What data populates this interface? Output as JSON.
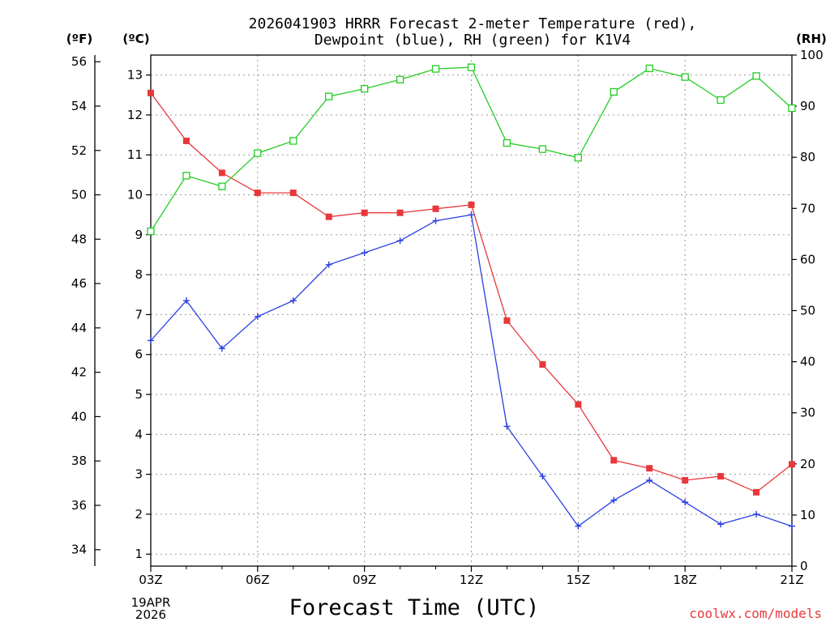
{
  "title_line1": "2026041903 HRRR Forecast 2-meter Temperature (red),",
  "title_line2": "Dewpoint (blue), RH (green) for K1V4",
  "units": {
    "fahrenheit": "(ºF)",
    "celsius": "(ºC)",
    "rh": "(RH)"
  },
  "date_label": {
    "day": "19APR",
    "year": "2026"
  },
  "credit": "coolwx.com/models",
  "colors": {
    "temperature": "#e8383b",
    "dewpoint": "#2a3fe0",
    "rh": "#22cc22"
  },
  "chart_data": {
    "type": "line",
    "title": "2026041903 HRRR Forecast 2-meter Temperature (red), Dewpoint (blue), RH (green) for K1V4",
    "xlabel": "Forecast Time (UTC)",
    "ylabel_left_outer": "(ºF)",
    "ylabel_left_inner": "(ºC)",
    "ylabel_right": "(RH)",
    "x": [
      3,
      4,
      5,
      6,
      7,
      8,
      9,
      10,
      11,
      12,
      13,
      14,
      15,
      16,
      17,
      18,
      19,
      20,
      21
    ],
    "xlim": [
      3,
      21
    ],
    "x_ticks": [
      3,
      6,
      9,
      12,
      15,
      18,
      21
    ],
    "x_tick_labels": [
      "03Z",
      "06Z",
      "09Z",
      "12Z",
      "15Z",
      "18Z",
      "21Z"
    ],
    "ylim_celsius": [
      0.7,
      13.5
    ],
    "y_ticks_celsius": [
      1,
      2,
      3,
      4,
      5,
      6,
      7,
      8,
      9,
      10,
      11,
      12,
      13
    ],
    "y_ticks_fahrenheit": [
      34,
      36,
      38,
      40,
      42,
      44,
      46,
      48,
      50,
      52,
      54,
      56
    ],
    "ylim_rh": [
      0,
      100
    ],
    "y_ticks_rh": [
      0,
      10,
      20,
      30,
      40,
      50,
      60,
      70,
      80,
      90,
      100
    ],
    "grid": true,
    "series": [
      {
        "name": "Temperature",
        "axis": "celsius",
        "color": "#e8383b",
        "marker": "filled-square",
        "values": [
          12.55,
          11.35,
          10.55,
          10.05,
          10.05,
          9.45,
          9.55,
          9.55,
          9.65,
          9.75,
          6.85,
          5.75,
          4.75,
          3.35,
          3.15,
          2.85,
          2.95,
          2.55,
          3.25
        ]
      },
      {
        "name": "Dewpoint",
        "axis": "celsius",
        "color": "#2a3fe0",
        "marker": "plus",
        "values": [
          6.35,
          7.35,
          6.15,
          6.95,
          7.35,
          8.25,
          8.55,
          8.85,
          9.35,
          9.5,
          4.2,
          2.95,
          1.7,
          2.35,
          2.85,
          2.3,
          1.75,
          2.0,
          1.7
        ]
      },
      {
        "name": "RH",
        "axis": "rh",
        "color": "#22cc22",
        "marker": "open-square",
        "values": [
          65.5,
          76.4,
          74.3,
          80.8,
          83.2,
          91.9,
          93.4,
          95.2,
          97.3,
          97.6,
          82.8,
          81.6,
          79.9,
          92.8,
          97.4,
          95.7,
          91.2,
          95.9,
          89.6
        ]
      }
    ]
  }
}
